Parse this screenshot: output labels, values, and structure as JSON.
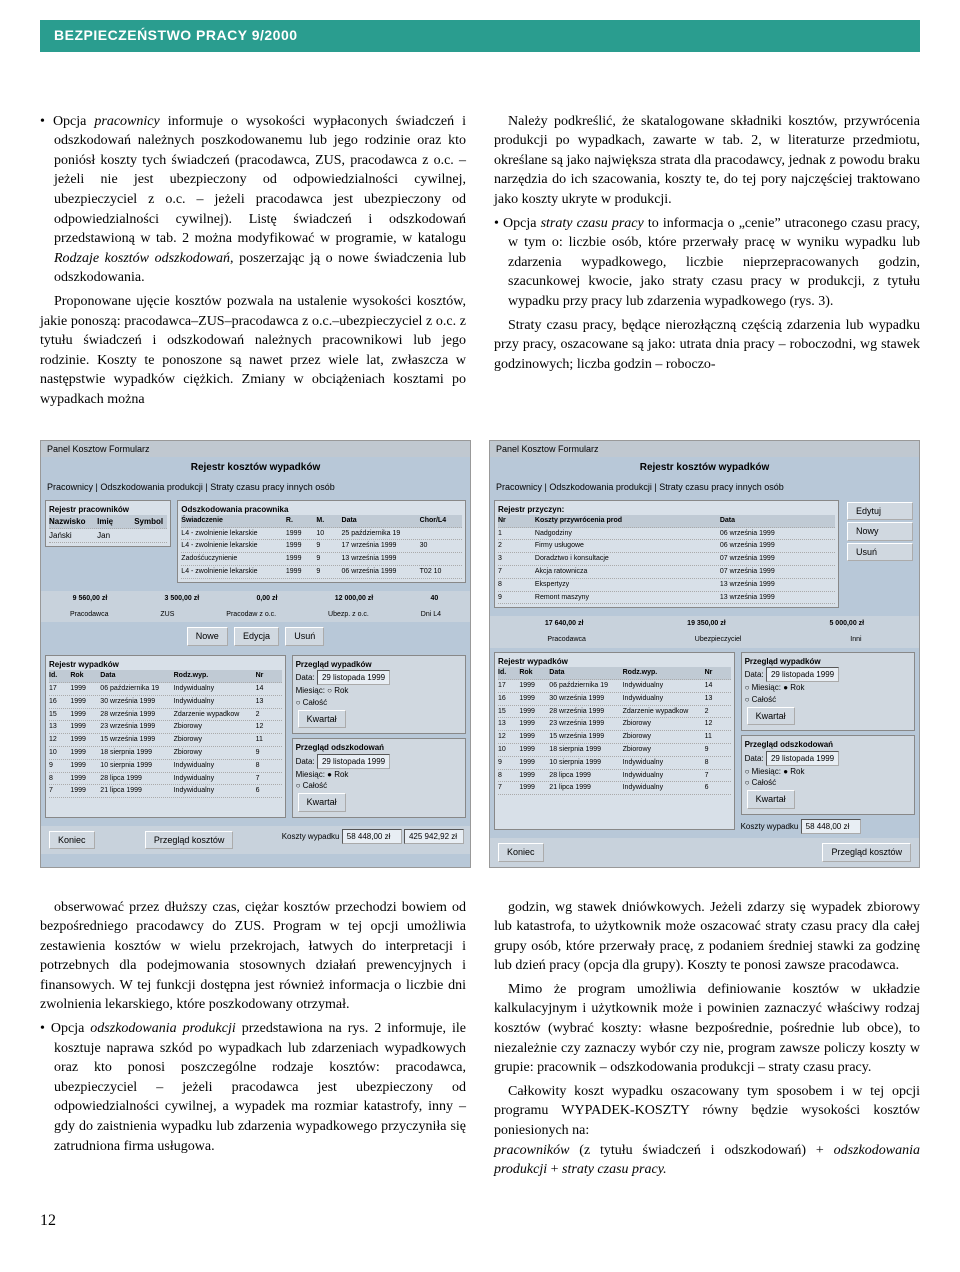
{
  "header": "BEZPIECZEŃSTWO PRACY 9/2000",
  "page_number": "12",
  "colors": {
    "header_bg": "#2a9d8f",
    "header_text": "#ffffff",
    "scr_bg": "#b8c8d8"
  },
  "top": {
    "p1a": "Opcja ",
    "p1b": "pracownicy",
    "p1c": " informuje o wysokości wypłaconych świadczeń i odszkodowań należnych poszkodowanemu lub jego rodzinie oraz kto poniósł koszty tych świadczeń (pracodawca, ZUS, pracodawca z o.c. – jeżeli nie jest ubezpieczony od odpowiedzialności cywilnej, ubezpieczyciel z o.c. – jeżeli pracodawca jest ubezpieczony od odpowiedzialności cywilnej). Listę świadczeń i odszkodowań przedstawioną w tab. 2 można modyfikować w programie, w katalogu ",
    "p1d": "Rodzaje kosztów odszkodowań",
    "p1e": ", poszerzając ją o nowe świadczenia lub odszkodowania.",
    "p2": "Proponowane ujęcie kosztów pozwala na ustalenie wysokości kosztów, jakie ponoszą: pracodawca–ZUS–pracodawca z o.c.–ubezpieczyciel z o.c. z tytułu świadczeń i odszkodowań należnych pracownikowi lub jego rodzinie. Koszty te ponoszone są nawet przez wiele lat, zwłaszcza w następstwie wypadków ciężkich. Zmiany w obciążeniach kosztami po wypadkach można",
    "p3": "Należy podkreślić, że skatalogowane składniki kosztów, przywrócenia produkcji po wypadkach, zawarte w tab. 2, w literaturze przedmiotu, określane są jako największa strata dla pracodawcy, jednak z powodu braku narzędzia do ich szacowania, koszty te, do tej pory najczęściej traktowano jako koszty ukryte w produkcji.",
    "p4a": "Opcja ",
    "p4b": "straty czasu pracy",
    "p4c": " to informacja o „cenie” utraconego czasu pracy, w tym o: liczbie osób, które przerwały pracę w wyniku wypadku lub zdarzenia wypadkowego, liczbie nieprzepracowanych godzin, szacunkowej kwocie, jako straty czasu pracy w produkcji, z tytułu wypadku przy pracy lub zdarzenia wypadkowego (rys. 3).",
    "p5": "Straty czasu pracy, będące nierozłączną częścią zdarzenia lub wypadku przy pracy, oszacowane są jako: utrata dnia pracy – roboczodni, wg stawek godzinowych; liczba godzin – roboczo-"
  },
  "bottom": {
    "p1": "obserwować przez dłuższy czas, ciężar kosztów przechodzi bowiem od bezpośredniego pracodawcy do ZUS. Program w tej opcji umożliwia zestawienia kosztów w wielu przekrojach, łatwych do interpretacji i potrzebnych dla podejmowania stosownych działań prewencyjnych i finansowych. W tej funkcji dostępna jest również informacja o liczbie dni zwolnienia lekarskiego, które poszkodowany otrzymał.",
    "p2a": "Opcja ",
    "p2b": "odszkodowania produkcji",
    "p2c": " przedstawiona na rys. 2 informuje, ile kosztuje naprawa szkód po wypadkach lub zdarzeniach wypadkowych oraz kto ponosi poszczególne rodzaje kosztów: pracodawca, ubezpieczyciel – jeżeli pracodawca jest ubezpieczony od odpowiedzialności cywilnej, a wypadek ma rozmiar katastrofy, inny – gdy do zaistnienia wypadku lub zdarzenia wypadkowego przyczyniła się zatrudniona firma usługowa.",
    "p3": "godzin, wg stawek dniówkowych. Jeżeli zdarzy się wypadek zbiorowy lub katastrofa, to użytkownik może oszacować straty czasu pracy dla całej grupy osób, które przerwały pracę, z podaniem średniej stawki za godzinę lub dzień pracy (opcja dla grupy). Koszty te ponosi zawsze pracodawca.",
    "p4": "Mimo że program umożliwia definiowanie kosztów w układzie kalkulacyjnym i użytkownik może i powinien zaznaczyć właściwy rodzaj kosztów (wybrać koszty: własne bezpośrednie, pośrednie lub obce), to niezależnie czy zaznaczy wybór czy nie, program zawsze policzy koszty w grupie: pracownik – odszkodowania produkcji – straty czasu pracy.",
    "p5a": "Całkowity koszt wypadku oszacowany tym sposobem i w tej opcji programu WYPADEK-KOSZTY równy będzie wysokości kosztów poniesionych na:",
    "p5b": "pracowników",
    "p5c": " (z tytułu świadczeń i odszkodowań) + ",
    "p5d": "odszkodowania produkcji",
    "p5e": " + ",
    "p5f": "straty czasu pracy."
  },
  "scr1": {
    "menu": "Panel Kosztow  Formularz",
    "title": "Rejestr kosztów wypadków",
    "tabs": "Pracownicy | Odszkodowania produkcji | Straty czasu pracy innych osób",
    "left_header": "Rejestr pracowników",
    "left_cols": [
      "Nazwisko",
      "Imię",
      "Symbol"
    ],
    "left_row": [
      "Jański",
      "Jan",
      ""
    ],
    "right_header": "Odszkodowania pracownika",
    "right_cols": [
      "Świadczenie",
      "R.",
      "M.",
      "Data",
      "Chor/L4"
    ],
    "right_rows": [
      [
        "L4 - zwolnienie lekarskie",
        "1999",
        "10",
        "25 października 19",
        ""
      ],
      [
        "L4 - zwolnienie lekarskie",
        "1999",
        "9",
        "17 września 1999",
        "30"
      ],
      [
        "Zadośćuczynienie",
        "1999",
        "9",
        "13 września 1999",
        ""
      ],
      [
        "L4 - zwolnienie lekarskie",
        "1999",
        "9",
        "06 września 1999",
        "T02  10"
      ]
    ],
    "sums": [
      "9 560,00 zł",
      "3 500,00 zł",
      "0,00 zł",
      "12 000,00 zł",
      "40"
    ],
    "sum_labels": [
      "Pracodawca",
      "ZUS",
      "Pracodaw z o.c.",
      "Ubezp. z o.c.",
      "Dni L4"
    ],
    "btns": [
      "Nowe",
      "Edycja",
      "Usuń"
    ],
    "rej_header": "Rejestr wypadków",
    "rej_cols": [
      "Id.",
      "Rok",
      "Data",
      "Rodz.wyp.",
      "Nr"
    ],
    "rej_rows": [
      [
        "17",
        "1999",
        "06 października 19",
        "Indywidualny",
        "14"
      ],
      [
        "16",
        "1999",
        "30 września 1999",
        "Indywidualny",
        "13"
      ],
      [
        "15",
        "1999",
        "28 września 1999",
        "Zdarzenie wypadkow",
        "2"
      ],
      [
        "13",
        "1999",
        "23 września 1999",
        "Zbiorowy",
        "12"
      ],
      [
        "12",
        "1999",
        "15 września 1999",
        "Zbiorowy",
        "11"
      ],
      [
        "10",
        "1999",
        "18 sierpnia 1999",
        "Zbiorowy",
        "9"
      ],
      [
        "9",
        "1999",
        "10 sierpnia 1999",
        "Indywidualny",
        "8"
      ],
      [
        "8",
        "1999",
        "28 lipca 1999",
        "Indywidualny",
        "7"
      ],
      [
        "7",
        "1999",
        "21 lipca 1999",
        "Indywidualny",
        "6"
      ]
    ],
    "przegl_wyp": "Przegląd wypadków",
    "przegl_odsz": "Przegląd odszkodowań",
    "data_lbl": "Data:",
    "data_val": "29 listopada 1999",
    "miesiac": "Miesiąc:",
    "rok": "Rok",
    "calosc": "Całość",
    "kwartal": "Kwartał",
    "koniec": "Koniec",
    "przegl_kosztow": "Przegląd kosztów",
    "koszty_lbl": "Koszty wypadku",
    "koszty_val1": "58 448,00 zł",
    "koszty_val2": "425 942,92 zł"
  },
  "scr2": {
    "menu": "Panel Kosztow  Formularz",
    "title": "Rejestr kosztów wypadków",
    "tabs": "Pracownicy | Odszkodowania produkcji | Straty czasu pracy innych osób",
    "rej_header": "Rejestr przyczyn:",
    "cols": [
      "Nr",
      "Koszty przywrócenia prod",
      "Data"
    ],
    "rows": [
      [
        "1",
        "Nadgodziny",
        "06 września 1999"
      ],
      [
        "2",
        "Firmy usługowe",
        "06 września 1999"
      ],
      [
        "3",
        "Doradztwo i konsultacje",
        "07 września 1999"
      ],
      [
        "7",
        "Akcja ratownicza",
        "07 września 1999"
      ],
      [
        "8",
        "Ekspertyzy",
        "13 września 1999"
      ],
      [
        "9",
        "Remont maszyny",
        "13 września 1999"
      ]
    ],
    "btns": [
      "Edytuj",
      "Nowy",
      "Usuń"
    ],
    "sums": [
      "17 640,00 zł",
      "19 350,00 zł",
      "5 000,00 zł"
    ],
    "sum_labels": [
      "Pracodawca",
      "Ubezpieczyciel",
      "Inni"
    ],
    "rej2_header": "Rejestr wypadków",
    "rej2_cols": [
      "Id.",
      "Rok",
      "Data",
      "Rodz.wyp.",
      "Nr"
    ],
    "rej2_rows": [
      [
        "17",
        "1999",
        "06 października 19",
        "Indywidualny",
        "14"
      ],
      [
        "16",
        "1999",
        "30 września 1999",
        "Indywidualny",
        "13"
      ],
      [
        "15",
        "1999",
        "28 września 1999",
        "Zdarzenie wypadkow",
        "2"
      ],
      [
        "13",
        "1999",
        "23 września 1999",
        "Zbiorowy",
        "12"
      ],
      [
        "12",
        "1999",
        "15 września 1999",
        "Zbiorowy",
        "11"
      ],
      [
        "10",
        "1999",
        "18 sierpnia 1999",
        "Zbiorowy",
        "9"
      ],
      [
        "9",
        "1999",
        "10 sierpnia 1999",
        "Indywidualny",
        "8"
      ],
      [
        "8",
        "1999",
        "28 lipca 1999",
        "Indywidualny",
        "7"
      ],
      [
        "7",
        "1999",
        "21 lipca 1999",
        "Indywidualny",
        "6"
      ]
    ],
    "przegl_wyp": "Przegląd wypadków",
    "przegl_odsz": "Przegląd odszkodowań",
    "data_lbl": "Data:",
    "data_val": "29 listopada 1999",
    "miesiac": "Miesiąc:",
    "rok": "Rok",
    "calosc": "Całość",
    "kwartal": "Kwartał",
    "koniec": "Koniec",
    "przegl_kosztow": "Przegląd kosztów",
    "koszty_lbl": "Koszty wypadku",
    "koszty_val": "58 448,00 zł"
  }
}
